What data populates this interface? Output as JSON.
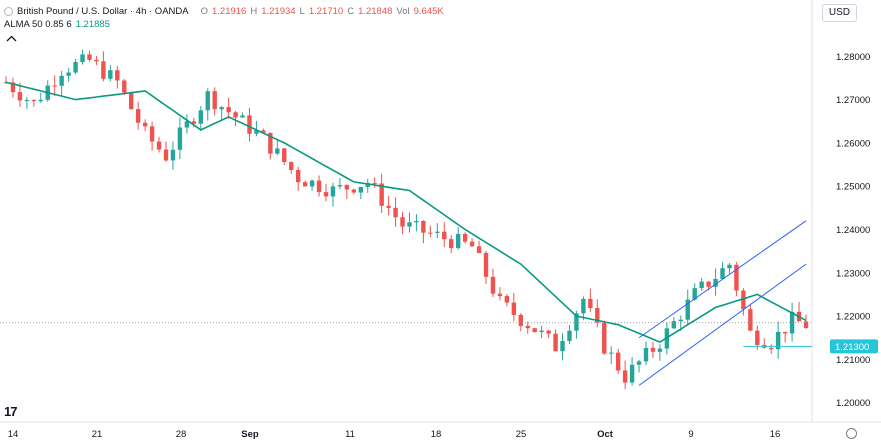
{
  "legend": {
    "title": "British Pound / U.S. Dollar · 4h · OANDA",
    "open_label": "O",
    "open": "1.21916",
    "high_label": "H",
    "high": "1.21934",
    "low_label": "L",
    "low": "1.21710",
    "close_label": "C",
    "close": "1.21848",
    "vol_label": "Vol",
    "vol": "9.645K",
    "alma_label": "ALMA 50 0.85 6",
    "alma_value": "1.21885"
  },
  "currency_button": "USD",
  "logo_text": "17",
  "colors": {
    "up": "#26a69a",
    "down": "#ef5350",
    "alma": "#089981",
    "channel": "#2962ff",
    "price_line": "#26c6da",
    "price_tag_bg": "#26c6da"
  },
  "chart_data": {
    "type": "candlestick",
    "title": "British Pound / U.S. Dollar · 4h · OANDA",
    "xlabel": "",
    "ylabel": "",
    "ylim": [
      1.196,
      1.287
    ],
    "y_ticks": [
      "1.28000",
      "1.27000",
      "1.26000",
      "1.25000",
      "1.24000",
      "1.23000",
      "1.22000",
      "1.21000",
      "1.20000"
    ],
    "y_tick_values": [
      1.28,
      1.27,
      1.26,
      1.25,
      1.24,
      1.23,
      1.22,
      1.21,
      1.2
    ],
    "x_ticks": [
      "14",
      "21",
      "28",
      "Sep",
      "11",
      "18",
      "25",
      "Oct",
      "9",
      "16"
    ],
    "price_label": "1.21300",
    "price_level": 1.213,
    "last_close": 1.21848,
    "trend_path": [
      [
        0,
        1.274
      ],
      [
        4,
        1.269
      ],
      [
        8,
        1.277
      ],
      [
        12,
        1.279
      ],
      [
        16,
        1.274
      ],
      [
        20,
        1.262
      ],
      [
        23,
        1.257
      ],
      [
        26,
        1.264
      ],
      [
        29,
        1.271
      ],
      [
        33,
        1.266
      ],
      [
        37,
        1.261
      ],
      [
        42,
        1.252
      ],
      [
        47,
        1.249
      ],
      [
        52,
        1.251
      ],
      [
        57,
        1.241
      ],
      [
        63,
        1.238
      ],
      [
        67,
        1.236
      ],
      [
        71,
        1.223
      ],
      [
        76,
        1.217
      ],
      [
        79,
        1.213
      ],
      [
        83,
        1.224
      ],
      [
        86,
        1.213
      ],
      [
        89,
        1.206
      ],
      [
        94,
        1.214
      ],
      [
        99,
        1.225
      ],
      [
        104,
        1.232
      ],
      [
        107,
        1.216
      ],
      [
        110,
        1.214
      ],
      [
        113,
        1.219
      ],
      [
        115,
        1.218
      ]
    ],
    "alma_series": [
      [
        0,
        1.274
      ],
      [
        10,
        1.27
      ],
      [
        20,
        1.272
      ],
      [
        28,
        1.263
      ],
      [
        32,
        1.266
      ],
      [
        40,
        1.26
      ],
      [
        50,
        1.251
      ],
      [
        58,
        1.249
      ],
      [
        66,
        1.24
      ],
      [
        74,
        1.232
      ],
      [
        82,
        1.22
      ],
      [
        88,
        1.218
      ],
      [
        94,
        1.214
      ],
      [
        102,
        1.222
      ],
      [
        108,
        1.225
      ],
      [
        115,
        1.219
      ]
    ],
    "channel_lines": [
      {
        "x0": 91,
        "y0": 1.204,
        "x1": 115,
        "y1": 1.232
      },
      {
        "x0": 91,
        "y0": 1.215,
        "x1": 115,
        "y1": 1.242
      }
    ]
  }
}
